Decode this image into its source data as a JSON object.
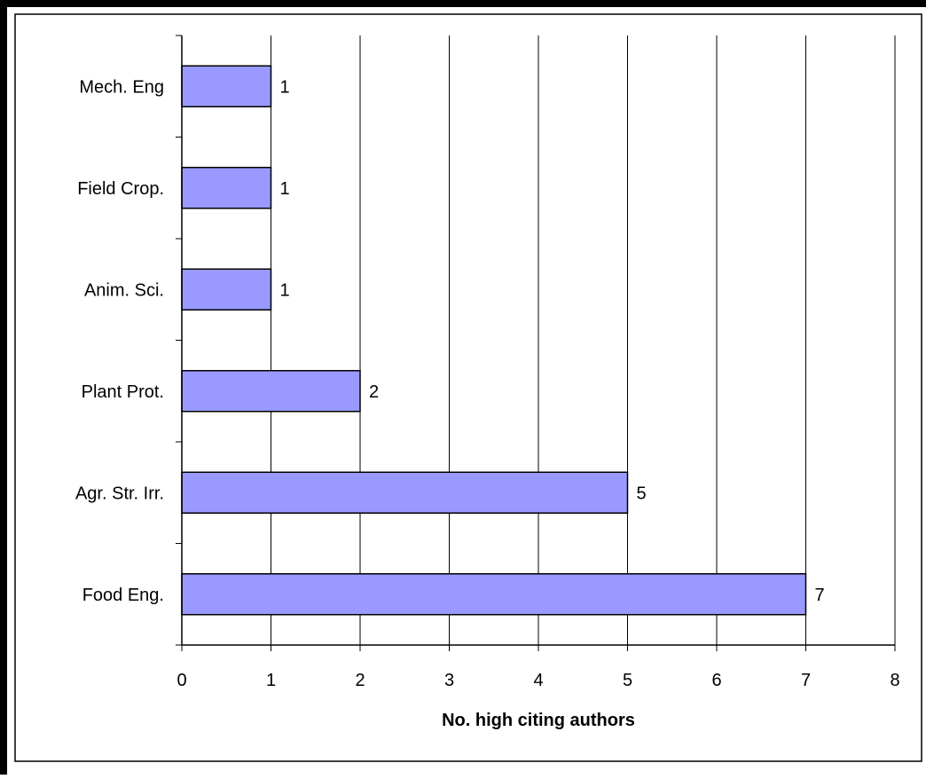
{
  "chart_data": {
    "type": "bar",
    "orientation": "horizontal",
    "categories": [
      "Mech. Eng",
      "Field Crop.",
      "Anim. Sci.",
      "Plant Prot.",
      "Agr. Str. Irr.",
      "Food Eng."
    ],
    "values": [
      1,
      1,
      1,
      2,
      5,
      7
    ],
    "xlabel": "No. high citing authors",
    "ylabel": "",
    "xlim": [
      0,
      8
    ],
    "xticks": [
      "0",
      "1",
      "2",
      "3",
      "4",
      "5",
      "6",
      "7",
      "8"
    ],
    "grid": "vertical",
    "data_labels": true,
    "legend": "none"
  },
  "colors": {
    "bar_fill": "#9999ff",
    "bar_stroke": "#000000",
    "grid": "#000000",
    "frame": "#000000",
    "background": "#ffffff"
  }
}
